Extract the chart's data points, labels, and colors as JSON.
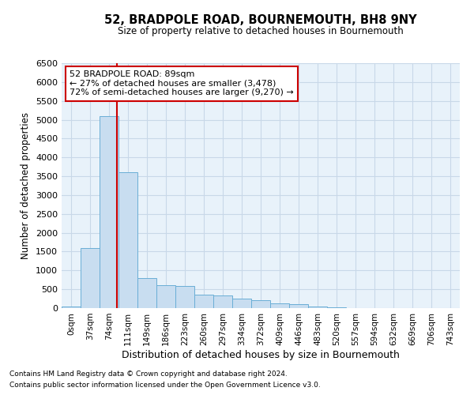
{
  "title": "52, BRADPOLE ROAD, BOURNEMOUTH, BH8 9NY",
  "subtitle": "Size of property relative to detached houses in Bournemouth",
  "xlabel": "Distribution of detached houses by size in Bournemouth",
  "ylabel": "Number of detached properties",
  "footnote1": "Contains HM Land Registry data © Crown copyright and database right 2024.",
  "footnote2": "Contains public sector information licensed under the Open Government Licence v3.0.",
  "bin_labels": [
    "0sqm",
    "37sqm",
    "74sqm",
    "111sqm",
    "149sqm",
    "186sqm",
    "223sqm",
    "260sqm",
    "297sqm",
    "334sqm",
    "372sqm",
    "409sqm",
    "446sqm",
    "483sqm",
    "520sqm",
    "557sqm",
    "594sqm",
    "632sqm",
    "669sqm",
    "706sqm",
    "743sqm"
  ],
  "bar_heights": [
    50,
    1600,
    5100,
    3600,
    800,
    600,
    580,
    350,
    340,
    250,
    200,
    130,
    100,
    50,
    30,
    0,
    0,
    0,
    0,
    0,
    0
  ],
  "bar_color": "#c8ddf0",
  "bar_edgecolor": "#6aaed6",
  "grid_color": "#c8d8e8",
  "background_color": "#e8f2fa",
  "annotation_text": "52 BRADPOLE ROAD: 89sqm\n← 27% of detached houses are smaller (3,478)\n72% of semi-detached houses are larger (9,270) →",
  "annotation_box_facecolor": "#ffffff",
  "annotation_box_edgecolor": "#cc0000",
  "redline_color": "#cc0000",
  "ylim": [
    0,
    6500
  ],
  "yticks": [
    0,
    500,
    1000,
    1500,
    2000,
    2500,
    3000,
    3500,
    4000,
    4500,
    5000,
    5500,
    6000,
    6500
  ]
}
